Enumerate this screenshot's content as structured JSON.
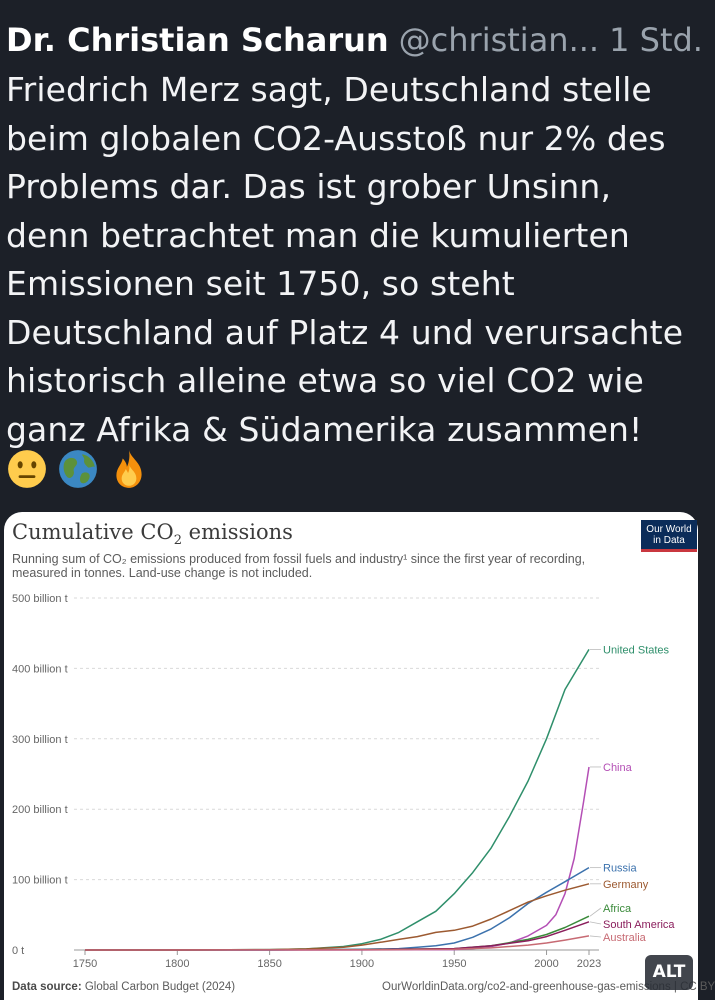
{
  "post": {
    "author_name": "Dr. Christian Scharun",
    "author_handle": "@christian...",
    "time": "1 Std.",
    "text": "Friedrich Merz sagt, Deutschland stelle\nbeim globalen CO2-Ausstoß nur 2% des\nProblems dar. Das ist grober Unsinn,\ndenn betrachtet man die kumulierten\nEmissionen seit 1750, so steht\nDeutschland auf Platz 4 und verursachte\nhistorisch alleine etwa so viel CO2 wie\nganz Afrika & Südamerika zusammen!",
    "emojis": [
      "neutral-face-emoji",
      "globe-emoji",
      "fire-emoji"
    ],
    "alt_label": "ALT"
  },
  "chart_data": {
    "type": "line",
    "title_main": "Cumulative CO",
    "title_sub": "2",
    "title_rest": " emissions",
    "subtitle_line1": "Running sum of CO₂ emissions produced from fossil fuels and industry¹ since the first year of recording,",
    "subtitle_line2": "measured in tonnes. Land-use change is not included.",
    "logo_line1": "Our World",
    "logo_line2": "in Data",
    "source_label": "Data source:",
    "source_text": " Global Carbon Budget (2024)",
    "url": "OurWorldinData.org/co2-and-greenhouse-gas-emissions | CC BY",
    "ylim": [
      0,
      500
    ],
    "y_ticks": [
      0,
      100,
      200,
      300,
      400,
      500
    ],
    "y_tick_labels": [
      "0 t",
      "100 billion t",
      "200 billion t",
      "300 billion t",
      "400 billion t",
      "500 billion t"
    ],
    "xlim": [
      1750,
      2023
    ],
    "x_ticks": [
      1750,
      1800,
      1850,
      1900,
      1950,
      2000,
      2023
    ],
    "x_tick_labels": [
      "1750",
      "1800",
      "1850",
      "1900",
      "1950",
      "2000",
      "2023"
    ],
    "grid": true,
    "series": [
      {
        "name": "United States",
        "color": "#2f8f6b",
        "x": [
          1750,
          1800,
          1850,
          1870,
          1890,
          1900,
          1910,
          1920,
          1930,
          1940,
          1950,
          1960,
          1970,
          1980,
          1990,
          2000,
          2010,
          2023
        ],
        "values": [
          0,
          0,
          0.5,
          1.5,
          5,
          9,
          15,
          25,
          40,
          55,
          80,
          110,
          145,
          190,
          240,
          300,
          370,
          427
        ]
      },
      {
        "name": "China",
        "color": "#b44fb5",
        "x": [
          1750,
          1900,
          1950,
          1960,
          1970,
          1980,
          1990,
          2000,
          2005,
          2010,
          2015,
          2020,
          2023
        ],
        "values": [
          0,
          0,
          0.5,
          2,
          5,
          10,
          20,
          35,
          50,
          80,
          130,
          210,
          260
        ]
      },
      {
        "name": "Russia",
        "color": "#3c72ad",
        "x": [
          1750,
          1850,
          1900,
          1920,
          1930,
          1940,
          1950,
          1960,
          1970,
          1980,
          1990,
          2000,
          2010,
          2023
        ],
        "values": [
          0,
          0,
          1,
          2,
          4,
          6,
          10,
          18,
          30,
          46,
          66,
          82,
          97,
          117
        ]
      },
      {
        "name": "Germany",
        "color": "#9c5a31",
        "x": [
          1750,
          1800,
          1850,
          1870,
          1890,
          1900,
          1910,
          1920,
          1930,
          1940,
          1950,
          1960,
          1970,
          1980,
          1990,
          2000,
          2010,
          2023
        ],
        "values": [
          0,
          0,
          0.5,
          1.5,
          4,
          7,
          11,
          15,
          19,
          25,
          28,
          34,
          44,
          56,
          68,
          77,
          85,
          94
        ]
      },
      {
        "name": "Africa",
        "color": "#3a8a3a",
        "x": [
          1750,
          1900,
          1950,
          1970,
          1990,
          2000,
          2010,
          2023
        ],
        "values": [
          0,
          0.5,
          2,
          6,
          15,
          22,
          32,
          48
        ]
      },
      {
        "name": "South America",
        "color": "#8a1e5c",
        "x": [
          1750,
          1900,
          1950,
          1970,
          1990,
          2000,
          2010,
          2023
        ],
        "values": [
          0,
          0.3,
          2,
          6,
          13,
          19,
          28,
          40
        ]
      },
      {
        "name": "Australia",
        "color": "#c76a73",
        "x": [
          1750,
          1900,
          1950,
          1970,
          1990,
          2000,
          2010,
          2023
        ],
        "values": [
          0,
          0.3,
          1,
          3,
          7,
          10,
          14,
          20
        ]
      }
    ]
  }
}
